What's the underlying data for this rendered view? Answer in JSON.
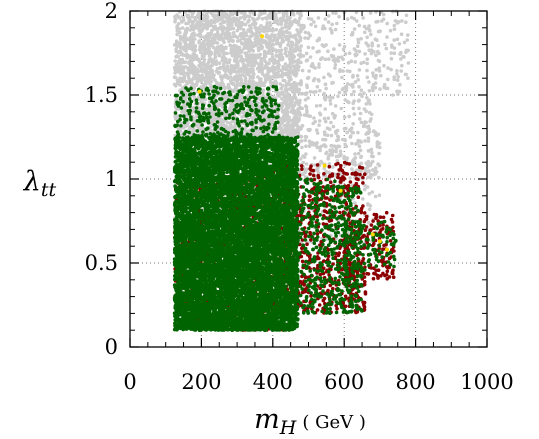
{
  "chart_data": {
    "type": "scatter",
    "title": "",
    "xlabel": {
      "main": "m",
      "sub": "H",
      "unit": "( GeV )"
    },
    "ylabel": {
      "main": "λ",
      "sub": "tt"
    },
    "xlim": [
      0,
      1000
    ],
    "ylim": [
      0,
      2
    ],
    "x_ticks": [
      0,
      200,
      400,
      600,
      800,
      1000
    ],
    "x_tick_labels": [
      "0",
      "200",
      "400",
      "600",
      "800",
      "1000"
    ],
    "y_ticks": [
      0,
      0.5,
      1,
      1.5,
      2
    ],
    "y_tick_labels": [
      "0",
      "0.5",
      "1",
      "1.5",
      "2"
    ],
    "grid": "dotted",
    "legend": "none",
    "series": [
      {
        "color": "#cccccc",
        "description": "gray points (background)",
        "regions": [
          {
            "x": [
              125,
              480
            ],
            "y": [
              1.25,
              2.0
            ],
            "n": 2600
          },
          {
            "x": [
              480,
              700
            ],
            "y": [
              1.0,
              2.0
            ],
            "n": 450
          },
          {
            "x": [
              700,
              780
            ],
            "y": [
              1.5,
              2.0
            ],
            "n": 70
          },
          {
            "x": [
              125,
              700
            ],
            "y": [
              0.6,
              1.3
            ],
            "n": 500
          }
        ]
      },
      {
        "color": "#8b0000",
        "description": "dark red points",
        "regions": [
          {
            "x": [
              125,
              450
            ],
            "y": [
              0.1,
              1.05
            ],
            "n": 900
          },
          {
            "x": [
              420,
              660
            ],
            "y": [
              0.2,
              1.1
            ],
            "n": 700
          },
          {
            "x": [
              600,
              740
            ],
            "y": [
              0.4,
              0.8
            ],
            "n": 170
          }
        ]
      },
      {
        "color": "#006400",
        "description": "dark green points",
        "regions": [
          {
            "x": [
              125,
              470
            ],
            "y": [
              0.1,
              1.25
            ],
            "n": 9500
          },
          {
            "x": [
              125,
              420
            ],
            "y": [
              1.25,
              1.55
            ],
            "n": 320
          },
          {
            "x": [
              460,
              650
            ],
            "y": [
              0.2,
              1.0
            ],
            "n": 550
          },
          {
            "x": [
              600,
              745
            ],
            "y": [
              0.45,
              0.75
            ],
            "n": 120
          }
        ]
      },
      {
        "color": "#ffd700",
        "description": "yellow points",
        "points": [
          [
            370,
            1.85
          ],
          [
            195,
            1.52
          ],
          [
            680,
            0.67
          ],
          [
            700,
            0.63
          ],
          [
            545,
            1.08
          ],
          [
            720,
            0.58
          ],
          [
            590,
            0.93
          ]
        ]
      }
    ]
  }
}
